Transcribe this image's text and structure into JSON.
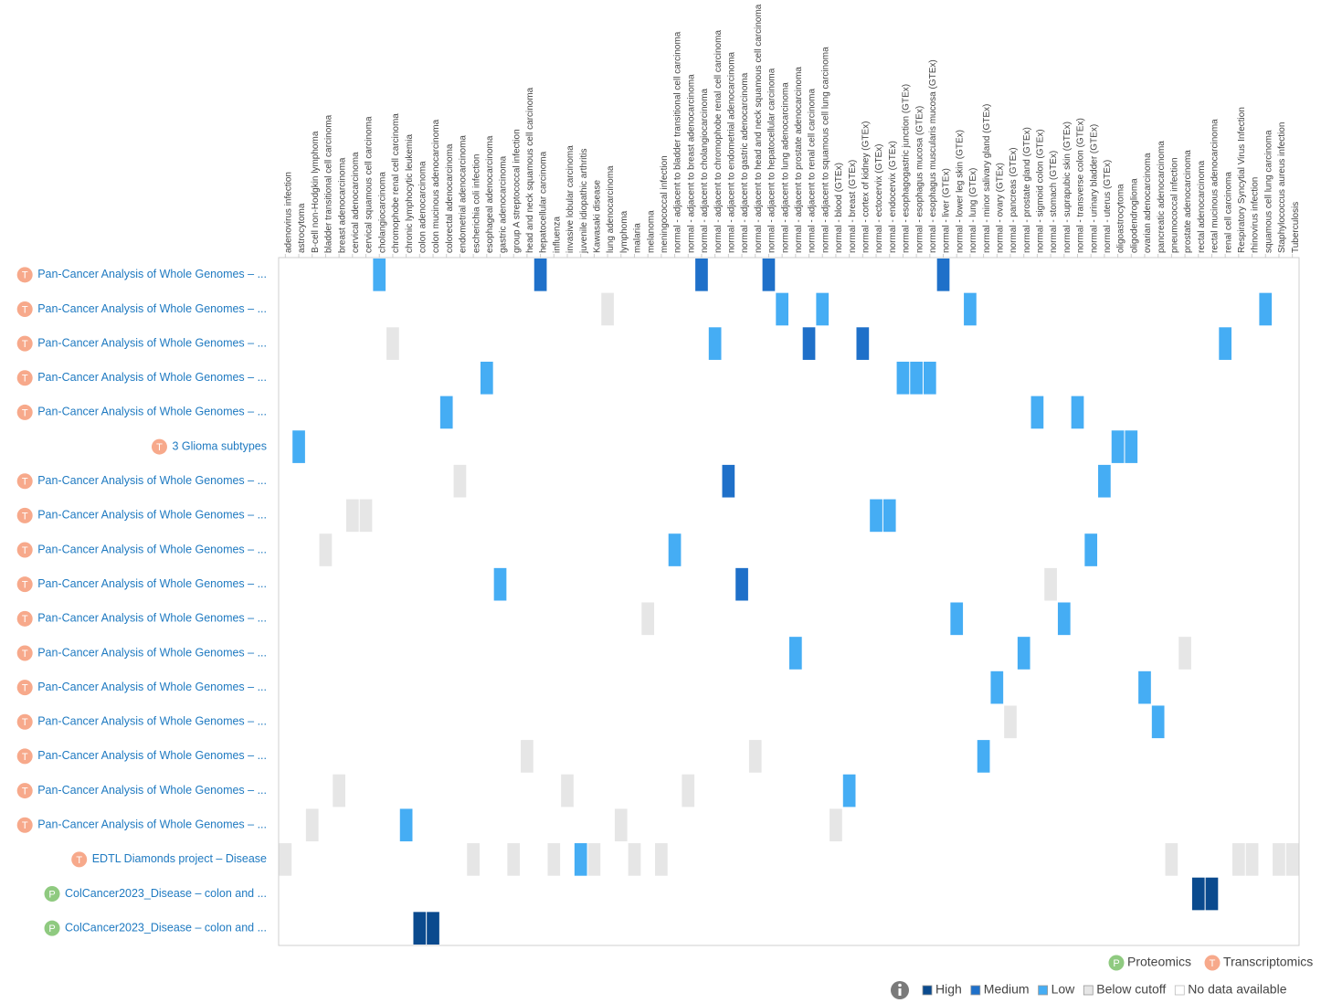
{
  "heatmap": {
    "columns": [
      "adenovirus infection",
      "astrocytoma",
      "B-cell non-Hodgkin lymphoma",
      "bladder transitional cell carcinoma",
      "breast adenocarcinoma",
      "cervical adenocarcinoma",
      "cervical squamous cell carcinoma",
      "cholangiocarcinoma",
      "chromophobe renal cell carcinoma",
      "chronic lymphocytic leukemia",
      "colon adenocarcinoma",
      "colon mucinous adenocarcinoma",
      "colorectal adenocarcinoma",
      "endometrial adenocarcinoma",
      "escherichia coli infection",
      "esophageal adenocarcinoma",
      "gastric adenocarcinoma",
      "group A streptococcal infection",
      "head and neck squamous cell carcinoma",
      "hepatocellular carcinoma",
      "influenza",
      "invasive lobular carcinoma",
      "juvenile idiopathic arthritis",
      "Kawasaki disease",
      "lung adenocarcinoma",
      "lymphoma",
      "malaria",
      "melanoma",
      "meningococcal infection",
      "normal - adjacent to bladder transitional cell carcinoma",
      "normal - adjacent to breast adenocarcinoma",
      "normal - adjacent to cholangiocarcinoma",
      "normal - adjacent to chromophobe renal cell carcinoma",
      "normal - adjacent to endometrial adenocarcinoma",
      "normal - adjacent to gastric adenocarcinoma",
      "normal - adjacent to head and neck squamous cell carcinoma",
      "normal - adjacent to hepatocellular carcinoma",
      "normal - adjacent to lung adenocarcinoma",
      "normal - adjacent to prostate adenocarcinoma",
      "normal - adjacent to renal cell carcinoma",
      "normal - adjacent to squamous cell lung carcinoma",
      "normal - blood (GTEx)",
      "normal - breast (GTEx)",
      "normal - cortex of kidney (GTEx)",
      "normal - ectocervix (GTEx)",
      "normal - endocervix (GTEx)",
      "normal - esophagogastric junction (GTEx)",
      "normal - esophagus mucosa (GTEx)",
      "normal - esophagus muscularis mucosa (GTEx)",
      "normal - liver (GTEx)",
      "normal - lower leg skin (GTEx)",
      "normal - lung (GTEx)",
      "normal - minor salivary gland (GTEx)",
      "normal - ovary (GTEx)",
      "normal - pancreas (GTEx)",
      "normal - prostate gland (GTEx)",
      "normal - sigmoid colon (GTEx)",
      "normal - stomach (GTEx)",
      "normal - suprapubic skin (GTEx)",
      "normal - transverse colon (GTEx)",
      "normal - urinary bladder (GTEx)",
      "normal - uterus (GTEx)",
      "oligoastrocytoma",
      "oligodendroglioma",
      "ovarian adenocarcinoma",
      "pancreatic adenocarcinoma",
      "pneumococcal infection",
      "prostate adenocarcinoma",
      "rectal adenocarcinoma",
      "rectal mucinous adenocarcinoma",
      "renal cell carcinoma",
      "Respiratory Syncytial Virus Infection",
      "rhinovirus infection",
      "squamous cell lung carcinoma",
      "Staphylococcus aureus infection",
      "Tuberculosis"
    ],
    "rows": [
      {
        "icon": "T",
        "label": "Pan-Cancer Analysis of Whole Genomes – ...",
        "cells": [
          {
            "column": "cholangiocarcinoma",
            "level": "Low"
          },
          {
            "column": "hepatocellular carcinoma",
            "level": "Medium"
          },
          {
            "column": "normal - adjacent to cholangiocarcinoma",
            "level": "Medium"
          },
          {
            "column": "normal - adjacent to hepatocellular carcinoma",
            "level": "Medium"
          },
          {
            "column": "normal - liver (GTEx)",
            "level": "Medium"
          }
        ]
      },
      {
        "icon": "T",
        "label": "Pan-Cancer Analysis of Whole Genomes – ...",
        "cells": [
          {
            "column": "lung adenocarcinoma",
            "level": "Below cutoff"
          },
          {
            "column": "normal - adjacent to lung adenocarcinoma",
            "level": "Low"
          },
          {
            "column": "normal - adjacent to squamous cell lung carcinoma",
            "level": "Low"
          },
          {
            "column": "normal - lung (GTEx)",
            "level": "Low"
          },
          {
            "column": "squamous cell lung carcinoma",
            "level": "Low"
          }
        ]
      },
      {
        "icon": "T",
        "label": "Pan-Cancer Analysis of Whole Genomes – ...",
        "cells": [
          {
            "column": "chromophobe renal cell carcinoma",
            "level": "Below cutoff"
          },
          {
            "column": "normal - adjacent to chromophobe renal cell carcinoma",
            "level": "Low"
          },
          {
            "column": "normal - adjacent to renal cell carcinoma",
            "level": "Medium"
          },
          {
            "column": "normal - cortex of kidney (GTEx)",
            "level": "Medium"
          },
          {
            "column": "renal cell carcinoma",
            "level": "Low"
          }
        ]
      },
      {
        "icon": "T",
        "label": "Pan-Cancer Analysis of Whole Genomes – ...",
        "cells": [
          {
            "column": "esophageal adenocarcinoma",
            "level": "Low"
          },
          {
            "column": "normal - esophagogastric junction (GTEx)",
            "level": "Low"
          },
          {
            "column": "normal - esophagus mucosa (GTEx)",
            "level": "Low"
          },
          {
            "column": "normal - esophagus muscularis mucosa (GTEx)",
            "level": "Low"
          }
        ]
      },
      {
        "icon": "T",
        "label": "Pan-Cancer Analysis of Whole Genomes – ...",
        "cells": [
          {
            "column": "colorectal adenocarcinoma",
            "level": "Low"
          },
          {
            "column": "normal - sigmoid colon (GTEx)",
            "level": "Low"
          },
          {
            "column": "normal - transverse colon (GTEx)",
            "level": "Low"
          }
        ]
      },
      {
        "icon": "T",
        "label": "3 Glioma subtypes",
        "cells": [
          {
            "column": "astrocytoma",
            "level": "Low"
          },
          {
            "column": "oligoastrocytoma",
            "level": "Low"
          },
          {
            "column": "oligodendroglioma",
            "level": "Low"
          }
        ]
      },
      {
        "icon": "T",
        "label": "Pan-Cancer Analysis of Whole Genomes – ...",
        "cells": [
          {
            "column": "endometrial adenocarcinoma",
            "level": "Below cutoff"
          },
          {
            "column": "normal - adjacent to endometrial adenocarcinoma",
            "level": "Medium"
          },
          {
            "column": "normal - uterus (GTEx)",
            "level": "Low"
          }
        ]
      },
      {
        "icon": "T",
        "label": "Pan-Cancer Analysis of Whole Genomes – ...",
        "cells": [
          {
            "column": "cervical adenocarcinoma",
            "level": "Below cutoff"
          },
          {
            "column": "cervical squamous cell carcinoma",
            "level": "Below cutoff"
          },
          {
            "column": "normal - ectocervix (GTEx)",
            "level": "Low"
          },
          {
            "column": "normal - endocervix (GTEx)",
            "level": "Low"
          }
        ]
      },
      {
        "icon": "T",
        "label": "Pan-Cancer Analysis of Whole Genomes – ...",
        "cells": [
          {
            "column": "bladder transitional cell carcinoma",
            "level": "Below cutoff"
          },
          {
            "column": "normal - adjacent to bladder transitional cell carcinoma",
            "level": "Low"
          },
          {
            "column": "normal - urinary bladder (GTEx)",
            "level": "Low"
          }
        ]
      },
      {
        "icon": "T",
        "label": "Pan-Cancer Analysis of Whole Genomes – ...",
        "cells": [
          {
            "column": "gastric adenocarcinoma",
            "level": "Low"
          },
          {
            "column": "normal - adjacent to gastric adenocarcinoma",
            "level": "Medium"
          },
          {
            "column": "normal - stomach (GTEx)",
            "level": "Below cutoff"
          }
        ]
      },
      {
        "icon": "T",
        "label": "Pan-Cancer Analysis of Whole Genomes – ...",
        "cells": [
          {
            "column": "melanoma",
            "level": "Below cutoff"
          },
          {
            "column": "normal - lower leg skin (GTEx)",
            "level": "Low"
          },
          {
            "column": "normal - suprapubic skin (GTEx)",
            "level": "Low"
          }
        ]
      },
      {
        "icon": "T",
        "label": "Pan-Cancer Analysis of Whole Genomes – ...",
        "cells": [
          {
            "column": "normal - adjacent to prostate adenocarcinoma",
            "level": "Low"
          },
          {
            "column": "normal - prostate gland (GTEx)",
            "level": "Low"
          },
          {
            "column": "prostate adenocarcinoma",
            "level": "Below cutoff"
          }
        ]
      },
      {
        "icon": "T",
        "label": "Pan-Cancer Analysis of Whole Genomes – ...",
        "cells": [
          {
            "column": "normal - ovary (GTEx)",
            "level": "Low"
          },
          {
            "column": "ovarian adenocarcinoma",
            "level": "Low"
          }
        ]
      },
      {
        "icon": "T",
        "label": "Pan-Cancer Analysis of Whole Genomes – ...",
        "cells": [
          {
            "column": "normal - pancreas (GTEx)",
            "level": "Below cutoff"
          },
          {
            "column": "pancreatic adenocarcinoma",
            "level": "Low"
          }
        ]
      },
      {
        "icon": "T",
        "label": "Pan-Cancer Analysis of Whole Genomes – ...",
        "cells": [
          {
            "column": "head and neck squamous cell carcinoma",
            "level": "Below cutoff"
          },
          {
            "column": "normal - adjacent to head and neck squamous cell carcinoma",
            "level": "Below cutoff"
          },
          {
            "column": "normal - minor salivary gland (GTEx)",
            "level": "Low"
          }
        ]
      },
      {
        "icon": "T",
        "label": "Pan-Cancer Analysis of Whole Genomes – ...",
        "cells": [
          {
            "column": "breast adenocarcinoma",
            "level": "Below cutoff"
          },
          {
            "column": "invasive lobular carcinoma",
            "level": "Below cutoff"
          },
          {
            "column": "normal - adjacent to breast adenocarcinoma",
            "level": "Below cutoff"
          },
          {
            "column": "normal - breast (GTEx)",
            "level": "Low"
          }
        ]
      },
      {
        "icon": "T",
        "label": "Pan-Cancer Analysis of Whole Genomes – ...",
        "cells": [
          {
            "column": "B-cell non-Hodgkin lymphoma",
            "level": "Below cutoff"
          },
          {
            "column": "chronic lymphocytic leukemia",
            "level": "Low"
          },
          {
            "column": "lymphoma",
            "level": "Below cutoff"
          },
          {
            "column": "normal - blood (GTEx)",
            "level": "Below cutoff"
          }
        ]
      },
      {
        "icon": "T",
        "label": "EDTL Diamonds project – Disease",
        "cells": [
          {
            "column": "adenovirus infection",
            "level": "Below cutoff"
          },
          {
            "column": "escherichia coli infection",
            "level": "Below cutoff"
          },
          {
            "column": "group A streptococcal infection",
            "level": "Below cutoff"
          },
          {
            "column": "influenza",
            "level": "Below cutoff"
          },
          {
            "column": "juvenile idiopathic arthritis",
            "level": "Low"
          },
          {
            "column": "Kawasaki disease",
            "level": "Below cutoff"
          },
          {
            "column": "malaria",
            "level": "Below cutoff"
          },
          {
            "column": "meningococcal infection",
            "level": "Below cutoff"
          },
          {
            "column": "pneumococcal infection",
            "level": "Below cutoff"
          },
          {
            "column": "Respiratory Syncytial Virus Infection",
            "level": "Below cutoff"
          },
          {
            "column": "rhinovirus infection",
            "level": "Below cutoff"
          },
          {
            "column": "Staphylococcus aureus infection",
            "level": "Below cutoff"
          },
          {
            "column": "Tuberculosis",
            "level": "Below cutoff"
          }
        ]
      },
      {
        "icon": "P",
        "label": "ColCancer2023_Disease – colon and ...",
        "cells": [
          {
            "column": "rectal adenocarcinoma",
            "level": "High"
          },
          {
            "column": "rectal mucinous adenocarcinoma",
            "level": "High"
          }
        ]
      },
      {
        "icon": "P",
        "label": "ColCancer2023_Disease – colon and ...",
        "cells": [
          {
            "column": "colon adenocarcinoma",
            "level": "High"
          },
          {
            "column": "colon mucinous adenocarcinoma",
            "level": "High"
          }
        ]
      }
    ]
  },
  "experiment_types": [
    {
      "icon": "P",
      "label": "Proteomics",
      "color": "#8fca80"
    },
    {
      "icon": "T",
      "label": "Transcriptomics",
      "color": "#f7a98b"
    }
  ],
  "legend": [
    {
      "label": "High",
      "color": "#0a4a8e"
    },
    {
      "label": "Medium",
      "color": "#1f70c9"
    },
    {
      "label": "Low",
      "color": "#45adf4"
    },
    {
      "label": "Below cutoff",
      "color": "#e6e6e6"
    },
    {
      "label": "No data available",
      "color": "#ffffff"
    }
  ]
}
